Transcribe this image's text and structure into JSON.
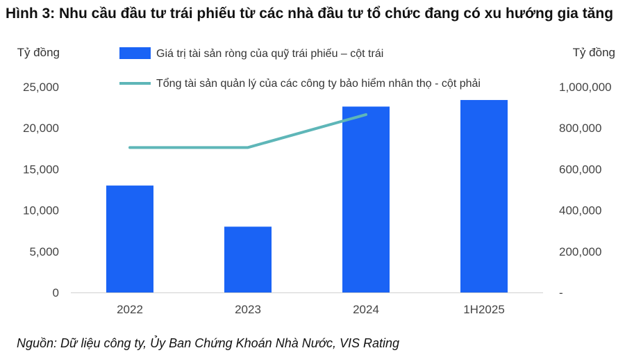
{
  "title": "Hình 3: Nhu cầu đầu tư trái phiếu từ các nhà đầu tư tổ chức đang có xu hướng gia tăng",
  "source": "Nguồn: Dữ liệu công ty, Ủy Ban Chứng Khoán Nhà Nước, VIS Rating",
  "colors": {
    "bar": "#1a63f5",
    "line": "#5eb6b8",
    "axis": "#d0d0d0"
  },
  "chart_data": {
    "type": "bar",
    "categories": [
      "2022",
      "2023",
      "2024",
      "1H2025"
    ],
    "y_left_unit": "Tỷ đồng",
    "y_right_unit": "Tỷ đồng",
    "y_left_ticks": [
      "0",
      "5,000",
      "10,000",
      "15,000",
      "20,000",
      "25,000"
    ],
    "y_right_ticks": [
      "-",
      "200,000",
      "400,000",
      "600,000",
      "800,000",
      "1,000,000"
    ],
    "y_left_lim": [
      0,
      25000
    ],
    "y_right_lim": [
      0,
      1000000
    ],
    "series": [
      {
        "name": "Giá trị tài sản ròng của quỹ trái phiếu – cột trái",
        "type": "bar",
        "axis": "left",
        "values": [
          13000,
          8000,
          22600,
          23400
        ]
      },
      {
        "name": "Tổng tài sản quản lý của các công ty bảo hiểm nhân thọ - cột phải",
        "type": "line",
        "axis": "right",
        "values": [
          705000,
          705000,
          865000,
          null
        ]
      }
    ]
  }
}
